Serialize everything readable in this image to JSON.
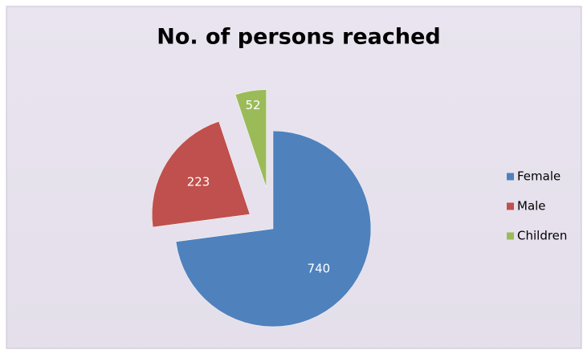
{
  "chart_data": {
    "type": "pie",
    "title": "No. of persons reached",
    "categories": [
      "Female",
      "Male",
      "Children"
    ],
    "values": [
      740,
      223,
      52
    ],
    "colors": [
      "#4f81bd",
      "#c0504d",
      "#9bbb59"
    ],
    "legend": "right"
  }
}
